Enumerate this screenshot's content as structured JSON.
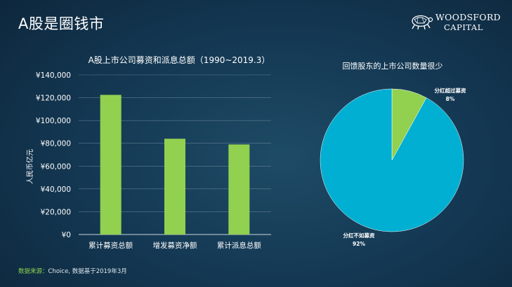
{
  "slide": {
    "title": "A股是圈钱市"
  },
  "logo": {
    "line1": "WOODSFORD",
    "line2": "CAPITAL",
    "icon": "turtle-logo-icon"
  },
  "source": {
    "label": "数据来源：",
    "text": "Choice, 数据基于2019年3月"
  },
  "colors": {
    "bar": "#92d050",
    "pie_main": "#00afd1",
    "pie_small": "#92d050",
    "axis_text": "#ffffff",
    "gridline": "#9bb0c0"
  },
  "chart_data": [
    {
      "type": "bar",
      "title": "A股上市公司募资和派息总额（1990~2019.3）",
      "categories": [
        "累计募资总额",
        "增发募资净额",
        "累计派息总额"
      ],
      "values": [
        122500,
        84000,
        79000
      ],
      "ylabel": "人民币亿元",
      "xlabel": "",
      "ylim": [
        0,
        140000
      ],
      "yticks": [
        0,
        20000,
        40000,
        60000,
        80000,
        100000,
        120000,
        140000
      ],
      "ytick_labels": [
        "¥0",
        "¥20,000",
        "¥40,000",
        "¥60,000",
        "¥80,000",
        "¥100,000",
        "¥120,000",
        "¥140,000"
      ],
      "grid": true
    },
    {
      "type": "pie",
      "title": "回馈股东的上市公司数量很少",
      "slices": [
        {
          "label": "分红超过募资",
          "value": 8,
          "value_label": "8%"
        },
        {
          "label": "分红不如募资",
          "value": 92,
          "value_label": "92%"
        }
      ]
    }
  ]
}
